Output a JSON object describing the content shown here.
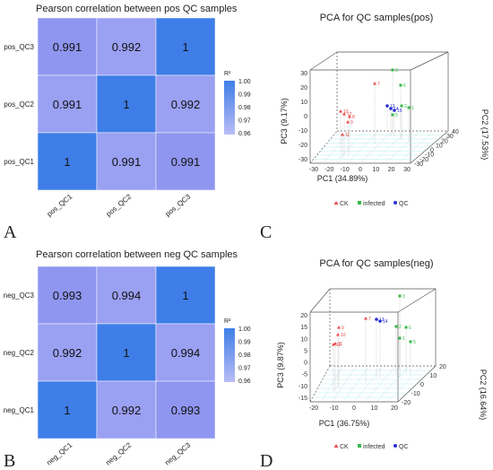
{
  "colors": {
    "diag": "#3f7ee8",
    "offdiag": "#8f96f0",
    "offdiag_mid": "#9aa0f2",
    "CK": "#e84a4a",
    "infected": "#35b84a",
    "QC": "#2a2ed4"
  },
  "chart_data": [
    {
      "id": "A",
      "type": "heatmap",
      "panel_label": "A",
      "title": "Pearson correlation between pos QC samples",
      "rows": [
        "pos_QC3",
        "pos_QC2",
        "pos_QC1"
      ],
      "cols": [
        "pos_QC1",
        "pos_QC2",
        "pos_QC3"
      ],
      "values": [
        [
          0.991,
          0.992,
          1
        ],
        [
          0.991,
          1,
          0.992
        ],
        [
          1,
          0.991,
          0.991
        ]
      ],
      "colorbar": {
        "title": "R²",
        "ticks": [
          "1.00",
          "0.99",
          "0.98",
          "0.97",
          "0.96"
        ]
      }
    },
    {
      "id": "B",
      "type": "heatmap",
      "panel_label": "B",
      "title": "Pearson correlation between neg QC samples",
      "rows": [
        "neg_QC3",
        "neg_QC2",
        "neg_QC1"
      ],
      "cols": [
        "neg_QC1",
        "neg_QC2",
        "neg_QC3"
      ],
      "values": [
        [
          0.993,
          0.994,
          1
        ],
        [
          0.992,
          1,
          0.994
        ],
        [
          1,
          0.992,
          0.993
        ]
      ],
      "colorbar": {
        "title": "R²",
        "ticks": [
          "1.00",
          "0.99",
          "0.98",
          "0.97",
          "0.96"
        ]
      }
    },
    {
      "id": "C",
      "type": "scatter",
      "panel_label": "C",
      "title": "PCA for QC samples(pos)",
      "xlabel": "PC1 (34.89%)",
      "ylabel": "PC3 (9.17%)",
      "zlabel": "PC2 (17.53%)",
      "legend": [
        "CK",
        "infected",
        "QC"
      ],
      "zticks": [
        "30",
        "20",
        "10",
        "0",
        "-10",
        "-20",
        "-30"
      ],
      "xticks": [
        "-30",
        "-20",
        "-10",
        "0",
        "10",
        "20",
        "30"
      ],
      "yticks": [
        "-30",
        "-20",
        "-10",
        "0",
        "10",
        "20",
        "30",
        "40"
      ],
      "points": [
        {
          "label": "7",
          "group": "CK"
        },
        {
          "label": "10",
          "group": "CK"
        },
        {
          "label": "12",
          "group": "CK"
        },
        {
          "label": "9",
          "group": "CK"
        },
        {
          "label": "11",
          "group": "CK"
        },
        {
          "label": "8",
          "group": "CK"
        },
        {
          "label": "3",
          "group": "infected"
        },
        {
          "label": "6",
          "group": "infected"
        },
        {
          "label": "2",
          "group": "infected"
        },
        {
          "label": "1",
          "group": "infected"
        },
        {
          "label": "5",
          "group": "infected"
        },
        {
          "label": "13",
          "group": "QC"
        },
        {
          "label": "14",
          "group": "QC"
        },
        {
          "label": "15",
          "group": "QC"
        }
      ]
    },
    {
      "id": "D",
      "type": "scatter",
      "panel_label": "D",
      "title": "PCA for QC samples(neg)",
      "xlabel": "PC1 (36.75%)",
      "ylabel": "PC3 (9.87%)",
      "zlabel": "PC2 (16.64%)",
      "legend": [
        "CK",
        "infected",
        "QC"
      ],
      "zticks": [
        "20",
        "15",
        "10",
        "5",
        "0",
        "-5",
        "-10",
        "-15"
      ],
      "xticks": [
        "-20",
        "-10",
        "0",
        "10",
        "20"
      ],
      "yticks": [
        "-20",
        "-10",
        "0",
        "10",
        "20"
      ],
      "points": [
        {
          "label": "9",
          "group": "CK"
        },
        {
          "label": "10",
          "group": "CK"
        },
        {
          "label": "11",
          "group": "CK"
        },
        {
          "label": "12",
          "group": "CK"
        },
        {
          "label": "7",
          "group": "CK"
        },
        {
          "label": "3",
          "group": "infected"
        },
        {
          "label": "2",
          "group": "infected"
        },
        {
          "label": "1",
          "group": "infected"
        },
        {
          "label": "6",
          "group": "infected"
        },
        {
          "label": "5",
          "group": "infected"
        },
        {
          "label": "13",
          "group": "QC"
        },
        {
          "label": "14",
          "group": "QC"
        }
      ]
    }
  ]
}
